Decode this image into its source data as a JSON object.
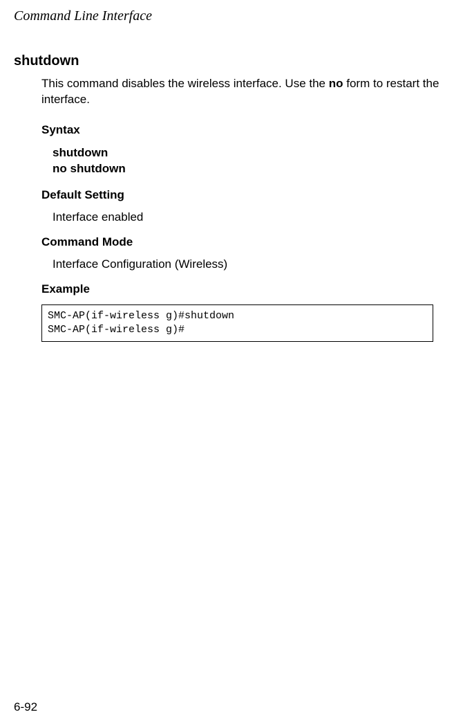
{
  "header": {
    "title": "Command Line Interface"
  },
  "command": {
    "name": "shutdown",
    "description_part1": "This command disables the wireless interface. Use the ",
    "description_bold": "no",
    "description_part2": " form to restart the interface."
  },
  "sections": {
    "syntax": {
      "heading": "Syntax",
      "line1": "shutdown",
      "line2": "no shutdown"
    },
    "default_setting": {
      "heading": "Default Setting",
      "value": "Interface enabled"
    },
    "command_mode": {
      "heading": "Command Mode",
      "value": "Interface Configuration (Wireless)"
    },
    "example": {
      "heading": "Example",
      "code": "SMC-AP(if-wireless g)#shutdown\nSMC-AP(if-wireless g)#"
    }
  },
  "footer": {
    "page_number": "6-92"
  }
}
